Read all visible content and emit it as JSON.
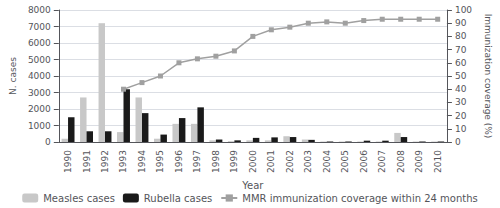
{
  "chart_data": {
    "type": "bar",
    "categories": [
      1990,
      1991,
      1992,
      1993,
      1994,
      1995,
      1996,
      1997,
      1998,
      1999,
      2000,
      2001,
      2002,
      2003,
      2004,
      2005,
      2006,
      2007,
      2008,
      2009,
      2010
    ],
    "series": [
      {
        "name": "Measles cases",
        "type": "bar",
        "color": "#c8c8c8",
        "values": [
          200,
          2700,
          7200,
          600,
          2700,
          200,
          1100,
          1100,
          100,
          50,
          100,
          100,
          350,
          150,
          30,
          30,
          30,
          30,
          550,
          30,
          30
        ]
      },
      {
        "name": "Rubella cases",
        "type": "bar",
        "color": "#1a1a1a",
        "values": [
          1500,
          650,
          650,
          3200,
          1750,
          450,
          1450,
          2100,
          150,
          100,
          250,
          280,
          300,
          130,
          30,
          30,
          80,
          80,
          300,
          30,
          30
        ]
      },
      {
        "name": "MMR immunization coverage within 24 months",
        "type": "line",
        "axis": "y2",
        "color": "#a0a0a0",
        "marker": "square",
        "values": [
          null,
          null,
          null,
          40,
          45,
          50,
          60,
          63,
          65,
          69,
          80,
          85,
          87,
          90,
          91,
          90,
          92,
          93,
          93,
          93,
          93
        ]
      }
    ],
    "xlabel": "Year",
    "ylabel": "N. cases",
    "y2label": "Immunization coverage (%)",
    "ylim": [
      0,
      8000
    ],
    "yticks": [
      0,
      1000,
      2000,
      3000,
      4000,
      5000,
      6000,
      7000,
      8000
    ],
    "y2lim": [
      0,
      100
    ],
    "y2ticks": [
      0,
      10,
      20,
      30,
      40,
      50,
      60,
      70,
      80,
      90,
      100
    ],
    "grid": true,
    "legend": "bottom"
  }
}
